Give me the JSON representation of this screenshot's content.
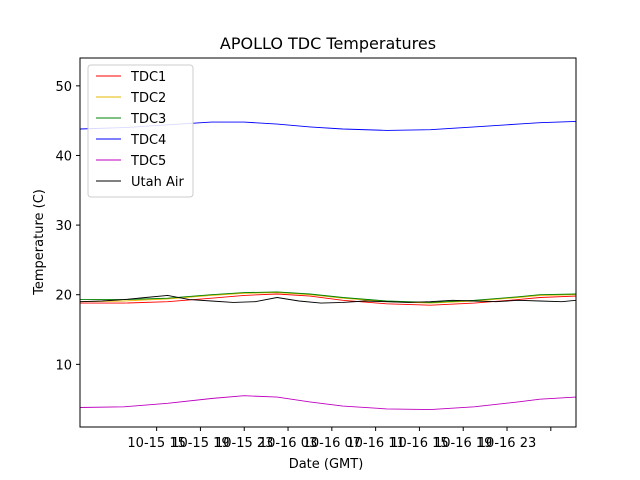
{
  "chart_data": {
    "type": "line",
    "title": "APOLLO TDC Temperatures",
    "xlabel": "Date (GMT)",
    "ylabel": "Temperature (C)",
    "xlim": [
      0,
      45.3
    ],
    "ylim": [
      1,
      54
    ],
    "x_tick_values": [
      7,
      11,
      15,
      19,
      23,
      27,
      31,
      35,
      39,
      43
    ],
    "x_tick_labels": [
      "10-15 15",
      "10-15 19",
      "10-15 23",
      "10-16 03",
      "10-16 07",
      "10-16 11",
      "10-16 15",
      "10-16 19",
      "10-16 23",
      ""
    ],
    "y_tick_values": [
      10,
      20,
      30,
      40,
      50
    ],
    "y_tick_labels": [
      "10",
      "20",
      "30",
      "40",
      "50"
    ],
    "legend_position": "upper-left",
    "x_unit": "hours since 10-15 08 GMT",
    "series": [
      {
        "name": "TDC1",
        "color": "#ff0000",
        "x": [
          0,
          4,
          8,
          12,
          15,
          18,
          21,
          24,
          28,
          32,
          36,
          40,
          42,
          45.3
        ],
        "values": [
          18.8,
          18.8,
          19.0,
          19.5,
          19.9,
          20.1,
          19.8,
          19.2,
          18.7,
          18.5,
          18.8,
          19.3,
          19.6,
          19.8
        ]
      },
      {
        "name": "TDC2",
        "color": "#e6b800",
        "x": [
          0,
          4,
          8,
          12,
          15,
          18,
          21,
          24,
          28,
          32,
          36,
          40,
          42,
          45.3
        ],
        "values": [
          19.0,
          19.1,
          19.4,
          19.9,
          20.2,
          20.3,
          20.0,
          19.5,
          19.0,
          18.8,
          19.1,
          19.6,
          19.9,
          20.0
        ]
      },
      {
        "name": "TDC3",
        "color": "#008000",
        "x": [
          0,
          4,
          8,
          12,
          15,
          18,
          21,
          24,
          28,
          32,
          36,
          40,
          42,
          45.3
        ],
        "values": [
          19.3,
          19.3,
          19.5,
          20.0,
          20.3,
          20.4,
          20.1,
          19.6,
          19.1,
          18.9,
          19.2,
          19.7,
          20.0,
          20.1
        ]
      },
      {
        "name": "TDC4",
        "color": "#0000ff",
        "x": [
          0,
          4,
          8,
          12,
          15,
          18,
          21,
          24,
          28,
          32,
          36,
          40,
          42,
          45.3
        ],
        "values": [
          43.8,
          44.0,
          44.4,
          44.8,
          44.8,
          44.5,
          44.1,
          43.8,
          43.6,
          43.7,
          44.1,
          44.5,
          44.7,
          44.9
        ]
      },
      {
        "name": "TDC5",
        "color": "#bf00bf",
        "x": [
          0,
          4,
          8,
          12,
          15,
          18,
          21,
          24,
          28,
          32,
          36,
          40,
          42,
          45.3
        ],
        "values": [
          3.8,
          3.9,
          4.4,
          5.1,
          5.5,
          5.3,
          4.6,
          4.0,
          3.6,
          3.5,
          3.9,
          4.6,
          5.0,
          5.3
        ]
      },
      {
        "name": "Utah Air",
        "color": "#000000",
        "x": [
          0,
          2,
          4,
          6,
          8,
          10,
          12,
          14,
          16,
          18,
          20,
          22,
          24,
          26,
          28,
          30,
          32,
          34,
          36,
          38,
          40,
          42,
          44,
          45.3
        ],
        "values": [
          19.0,
          19.1,
          19.3,
          19.6,
          19.9,
          19.3,
          19.1,
          18.9,
          19.0,
          19.6,
          19.1,
          18.8,
          18.9,
          19.1,
          19.0,
          18.9,
          19.0,
          19.2,
          19.1,
          19.0,
          19.2,
          19.1,
          19.0,
          19.2
        ]
      }
    ]
  }
}
